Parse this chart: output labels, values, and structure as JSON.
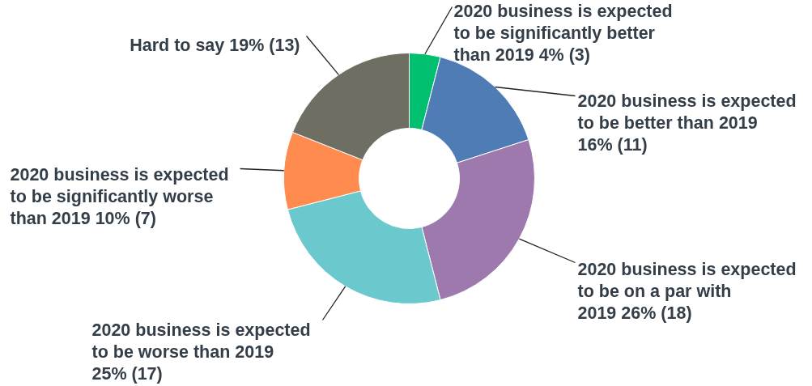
{
  "chart_data": {
    "type": "donut",
    "categories": [
      "2020 business is expected to be significantly better than 2019",
      "2020 business is expected to be better than 2019",
      "2020 business is expected to be on a par with 2019",
      "2020 business is expected to be worse than 2019",
      "2020 business is expected to be significantly worse than 2019",
      "Hard to say"
    ],
    "values": [
      4,
      16,
      26,
      25,
      10,
      19
    ],
    "value_labels": [
      "4% (3)",
      "16% (11)",
      "26% (18)",
      "25% (17)",
      "10% (7)",
      "19% (13)"
    ],
    "colors": [
      "#00bf6f",
      "#507cb6",
      "#9d79ad",
      "#6bc8cd",
      "#ff8b4f",
      "#6e6e62"
    ]
  }
}
